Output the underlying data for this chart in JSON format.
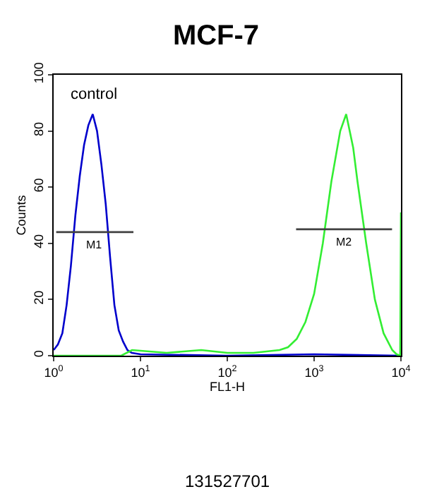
{
  "chart_data": {
    "type": "line",
    "title": "MCF-7",
    "xlabel": "FL1-H",
    "ylabel": "Counts",
    "log": "x",
    "legend": false,
    "xlim": [
      1,
      10000
    ],
    "xticks": [
      {
        "value": 1,
        "label": "10$^{0}$"
      },
      {
        "value": 10,
        "label": "10$^{1}$"
      },
      {
        "value": 100,
        "label": "10$^{2}$"
      },
      {
        "value": 1000,
        "label": "10$^{3}$"
      },
      {
        "value": 10000,
        "label": "10$^{4}$"
      }
    ],
    "ylim": [
      0,
      100
    ],
    "yticks": [
      0,
      20,
      40,
      60,
      80,
      100
    ],
    "series": [
      {
        "name": "control",
        "color": "#0000cc",
        "x": [
          1,
          1.12,
          1.26,
          1.41,
          1.58,
          1.78,
          2.0,
          2.24,
          2.51,
          2.82,
          3.16,
          3.55,
          3.98,
          4.47,
          5.01,
          5.62,
          6.31,
          7.08,
          7.94,
          10,
          100,
          1000,
          10000
        ],
        "values": [
          2,
          4,
          8,
          18,
          32,
          50,
          64,
          75,
          82,
          86,
          80,
          68,
          54,
          35,
          18,
          9,
          5,
          2,
          1,
          0.5,
          0,
          0.5,
          0
        ]
      },
      {
        "color": "#33ee33",
        "x": [
          1,
          6,
          8,
          20,
          50,
          100,
          200,
          400,
          500,
          631,
          794,
          1000,
          1260,
          1580,
          2000,
          2340,
          2820,
          3160,
          3980,
          5010,
          6310,
          7940,
          8910,
          9800,
          10000
        ],
        "values": [
          0,
          0,
          2,
          1,
          2,
          1,
          1,
          2,
          3,
          6,
          12,
          22,
          40,
          62,
          80,
          86,
          74,
          62,
          40,
          20,
          8,
          2,
          0.5,
          0,
          51
        ]
      },
      {
        "name": "M1",
        "color": "#404040",
        "x": [
          1.07,
          8.3
        ],
        "values": [
          44,
          44
        ]
      },
      {
        "name": "M2",
        "color": "#404040",
        "x": [
          620,
          7900
        ],
        "values": [
          45,
          45
        ]
      }
    ],
    "annotations": [
      "131527701"
    ]
  }
}
